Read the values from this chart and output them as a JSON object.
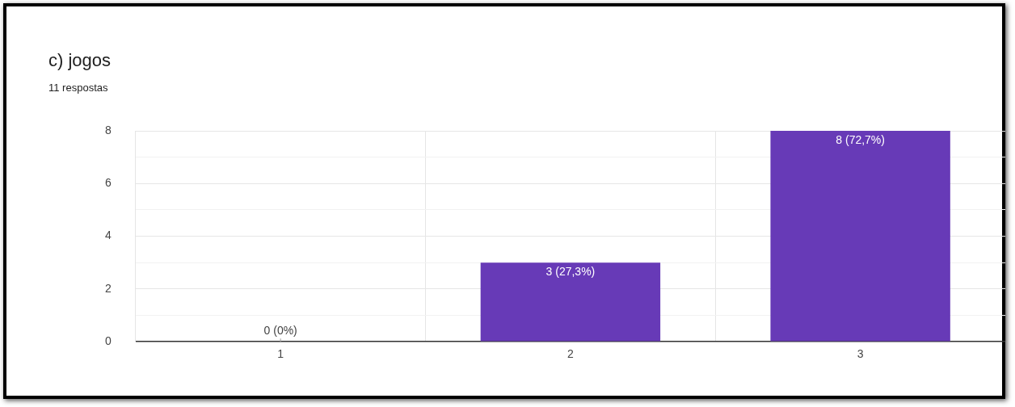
{
  "chart_data": {
    "type": "bar",
    "title": "c) jogos",
    "subtitle": "11 respostas",
    "categories": [
      "1",
      "2",
      "3"
    ],
    "values": [
      0,
      3,
      8
    ],
    "color": "#673ab7",
    "value_labels": [
      "0 (0%)",
      "3 (27,3%)",
      "8 (72,7%)"
    ],
    "ylim": [
      0,
      8
    ],
    "yticks": [
      0,
      {
        "value": 1,
        "label": null
      },
      2,
      {
        "value": 3,
        "label": null
      },
      4,
      {
        "value": 5,
        "label": null
      },
      6,
      {
        "value": 7,
        "label": null
      },
      8
    ],
    "grid": true
  }
}
